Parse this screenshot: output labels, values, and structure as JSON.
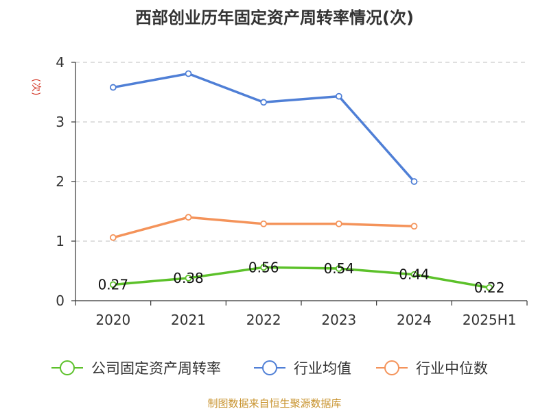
{
  "title": "西部创业历年固定资产周转率情况(次)",
  "footer": "制图数据来自恒生聚源数据库",
  "chart_data": {
    "type": "line",
    "categories": [
      "2020",
      "2021",
      "2022",
      "2023",
      "2024",
      "2025H1"
    ],
    "ylabel": "(次)",
    "ylim": [
      0,
      4
    ],
    "yticks": [
      "0",
      "1",
      "2",
      "3",
      "4"
    ],
    "grid": true,
    "legend_position": "bottom",
    "series": [
      {
        "name": "公司固定资产周转率",
        "color": "#5cc12a",
        "values": [
          0.27,
          0.38,
          0.56,
          0.54,
          0.44,
          0.22
        ],
        "labels": [
          "0.27",
          "0.38",
          "0.56",
          "0.54",
          "0.44",
          "0.22"
        ]
      },
      {
        "name": "行业均值",
        "color": "#4f7fd6",
        "values": [
          3.58,
          3.81,
          3.33,
          3.43,
          2.0,
          null
        ]
      },
      {
        "name": "行业中位数",
        "color": "#f4935a",
        "values": [
          1.06,
          1.4,
          1.29,
          1.29,
          1.25,
          null
        ]
      }
    ]
  }
}
